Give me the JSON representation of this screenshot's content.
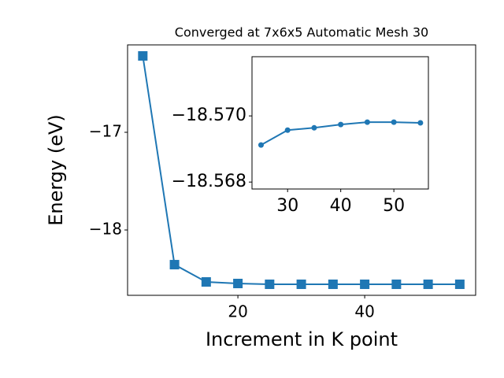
{
  "chart_data": [
    {
      "type": "line",
      "title": "Converged at 7x6x5 Automatic Mesh 30",
      "xlabel": "Increment in K point",
      "ylabel": "Energy (eV)",
      "x": [
        5,
        10,
        15,
        20,
        25,
        30,
        35,
        40,
        45,
        50,
        55
      ],
      "series": [
        {
          "color": "#1f77b4",
          "marker": "square",
          "values": [
            -16.218,
            -18.355,
            -18.532,
            -18.548,
            -18.556,
            -18.556,
            -18.556,
            -18.556,
            -18.556,
            -18.556,
            -18.556
          ]
        }
      ],
      "xlim": [
        2.6,
        57.5
      ],
      "ylim": [
        -18.669,
        -16.105
      ],
      "xticks": [
        20,
        40
      ],
      "yticks": [
        {
          "value": -18,
          "label": "−18"
        },
        {
          "value": -17,
          "label": "−17"
        }
      ]
    },
    {
      "type": "line",
      "x": [
        25,
        30,
        35,
        40,
        45,
        50,
        55
      ],
      "series": [
        {
          "color": "#1f77b4",
          "marker": "circle",
          "values": [
            -18.56912,
            -18.56957,
            -18.56964,
            -18.56974,
            -18.56981,
            -18.56981,
            -18.56979
          ]
        }
      ],
      "xlim": [
        23.3,
        56.5
      ],
      "ylim": [
        -18.56779,
        -18.57179
      ],
      "xticks": [
        30,
        40,
        50
      ],
      "yticks": [
        {
          "value": -18.568,
          "label": "−18.568"
        },
        {
          "value": -18.57,
          "label": "−18.570"
        }
      ]
    }
  ]
}
